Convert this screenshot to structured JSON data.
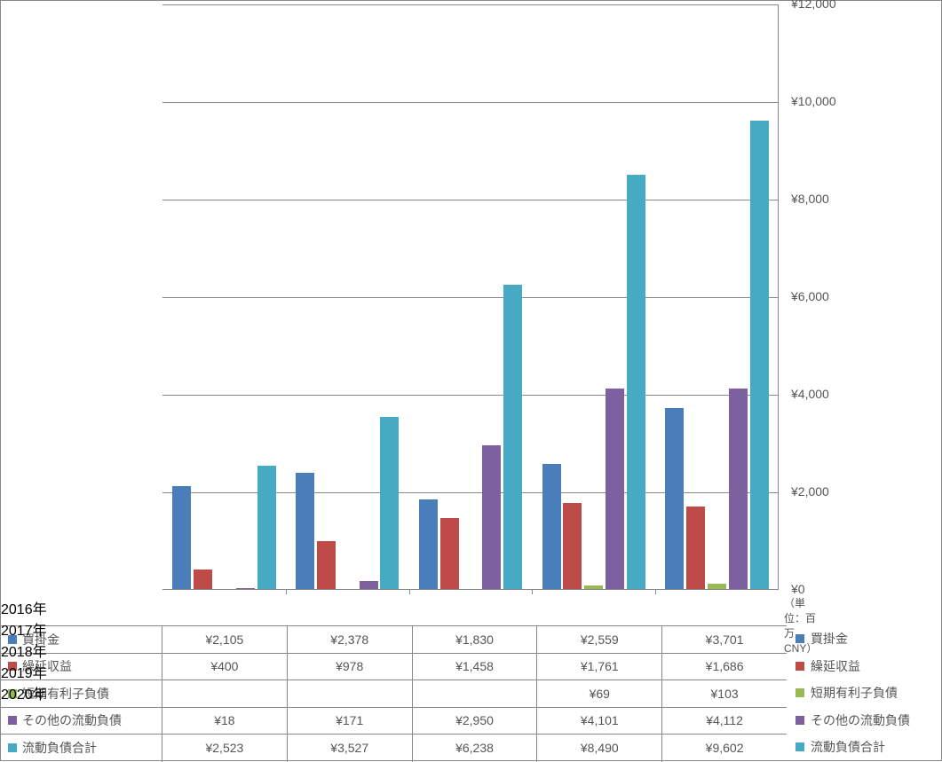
{
  "chart": {
    "type": "grouped-bar",
    "background_color": "#ffffff",
    "grid_color": "#888888",
    "text_color": "#555555",
    "label_fontsize": 14,
    "unit_label": "（単位：百万CNY）",
    "ylim": [
      0,
      12000
    ],
    "ytick_step": 2000,
    "yticks": [
      "¥0",
      "¥2,000",
      "¥4,000",
      "¥6,000",
      "¥8,000",
      "¥10,000",
      "¥12,000"
    ],
    "categories": [
      "2016年",
      "2017年",
      "2018年",
      "2019年",
      "2020年"
    ],
    "bar_gap": 0.02,
    "group_padding": 0.08,
    "series": [
      {
        "name": "買掛金",
        "color": "#4a7ebb",
        "values": [
          2105,
          2378,
          1830,
          2559,
          3701
        ],
        "labels": [
          "¥2,105",
          "¥2,378",
          "¥1,830",
          "¥2,559",
          "¥3,701"
        ]
      },
      {
        "name": "繰延収益",
        "color": "#be4b48",
        "values": [
          400,
          978,
          1458,
          1761,
          1686
        ],
        "labels": [
          "¥400",
          "¥978",
          "¥1,458",
          "¥1,761",
          "¥1,686"
        ]
      },
      {
        "name": "短期有利子負債",
        "color": "#98b954",
        "values": [
          null,
          null,
          null,
          69,
          103
        ],
        "labels": [
          "",
          "",
          "",
          "¥69",
          "¥103"
        ]
      },
      {
        "name": "その他の流動負債",
        "color": "#7d60a0",
        "values": [
          18,
          171,
          2950,
          4101,
          4112
        ],
        "labels": [
          "¥18",
          "¥171",
          "¥2,950",
          "¥4,101",
          "¥4,112"
        ]
      },
      {
        "name": "流動負債合計",
        "color": "#46aac5",
        "values": [
          2523,
          3527,
          6238,
          8490,
          9602
        ],
        "labels": [
          "¥2,523",
          "¥3,527",
          "¥6,238",
          "¥8,490",
          "¥9,602"
        ]
      }
    ]
  }
}
